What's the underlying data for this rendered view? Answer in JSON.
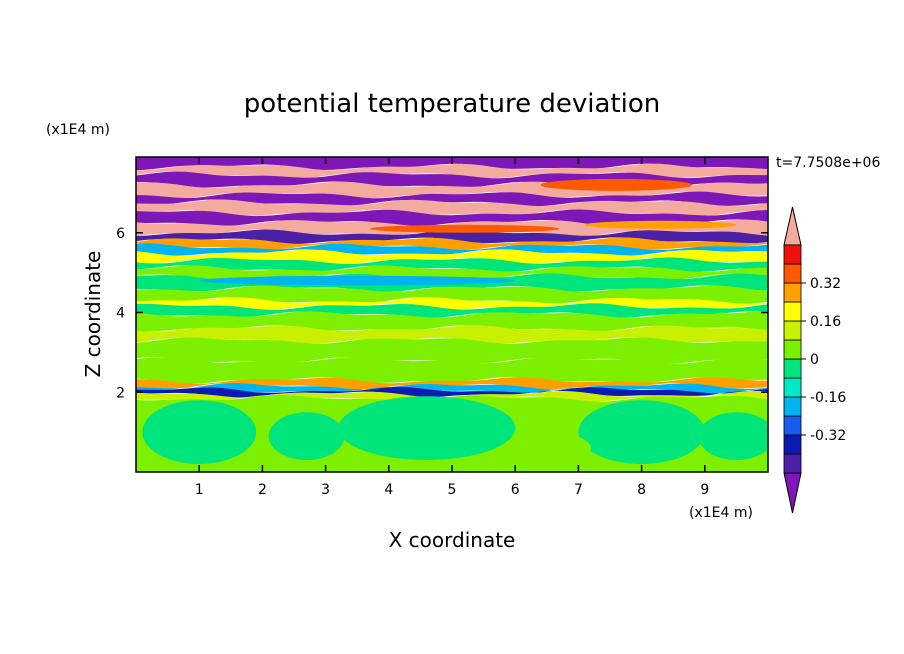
{
  "chart_data": {
    "type": "heatmap",
    "title": "potential temperature deviation",
    "xlabel": "X coordinate",
    "ylabel": "Z coordinate",
    "x_unit": "(x1E4 m)",
    "y_unit": "(x1E4 m)",
    "time_label": "t=7.7508e+06",
    "xlim": [
      0,
      10
    ],
    "ylim": [
      0,
      7.9
    ],
    "x_ticks": [
      "1",
      "2",
      "3",
      "4",
      "5",
      "6",
      "7",
      "8",
      "9"
    ],
    "y_ticks": [
      "2",
      "4",
      "6"
    ],
    "colorbar": {
      "tick_labels": [
        "0.32",
        "0.16",
        "0",
        "-0.16",
        "-0.32"
      ],
      "tick_values": [
        0.32,
        0.16,
        0,
        -0.16,
        -0.32
      ],
      "levels": [
        -0.48,
        -0.4,
        -0.32,
        -0.24,
        -0.16,
        -0.08,
        0,
        0.08,
        0.16,
        0.24,
        0.32,
        0.4,
        0.48
      ],
      "colors": [
        "#7f16b8",
        "#4b1fa6",
        "#0b1ab2",
        "#1a5cf0",
        "#00b4f0",
        "#00e8c8",
        "#00e47c",
        "#7cf000",
        "#c8f000",
        "#ffff00",
        "#ffa000",
        "#ff5a00",
        "#ef1010",
        "#f5aaa0"
      ],
      "extend": "both"
    },
    "bands": [
      {
        "z0": 7.65,
        "z1": 7.9,
        "value": -0.5
      },
      {
        "z0": 7.45,
        "z1": 7.65,
        "value": 0.5
      },
      {
        "z0": 7.2,
        "z1": 7.45,
        "value": -0.5
      },
      {
        "z0": 6.95,
        "z1": 7.2,
        "value": 0.5
      },
      {
        "z0": 6.75,
        "z1": 6.95,
        "value": -0.5
      },
      {
        "z0": 6.5,
        "z1": 6.75,
        "value": 0.5
      },
      {
        "z0": 6.25,
        "z1": 6.5,
        "value": -0.5
      },
      {
        "z0": 6.0,
        "z1": 6.25,
        "value": 0.5
      },
      {
        "z0": 5.8,
        "z1": 6.0,
        "value": -0.45
      },
      {
        "z0": 5.65,
        "z1": 5.8,
        "value": 0.3
      },
      {
        "z0": 5.5,
        "z1": 5.65,
        "value": -0.2
      },
      {
        "z0": 5.3,
        "z1": 5.5,
        "value": 0.2
      },
      {
        "z0": 5.1,
        "z1": 5.3,
        "value": -0.05
      },
      {
        "z0": 4.9,
        "z1": 5.1,
        "value": 0.05
      },
      {
        "z0": 4.6,
        "z1": 4.9,
        "value": -0.05
      },
      {
        "z0": 4.3,
        "z1": 4.6,
        "value": 0.05
      },
      {
        "z0": 4.15,
        "z1": 4.3,
        "value": 0.2
      },
      {
        "z0": 3.95,
        "z1": 4.15,
        "value": -0.05
      },
      {
        "z0": 3.6,
        "z1": 3.95,
        "value": 0.05
      },
      {
        "z0": 3.3,
        "z1": 3.6,
        "value": 0.1
      },
      {
        "z0": 2.8,
        "z1": 3.3,
        "value": 0.05
      },
      {
        "z0": 2.3,
        "z1": 2.8,
        "value": 0.05
      },
      {
        "z0": 2.15,
        "z1": 2.3,
        "value": 0.25
      },
      {
        "z0": 2.05,
        "z1": 2.15,
        "value": -0.2
      },
      {
        "z0": 1.95,
        "z1": 2.05,
        "value": -0.4
      },
      {
        "z0": 1.85,
        "z1": 1.95,
        "value": 0.1
      },
      {
        "z0": 0.0,
        "z1": 1.85,
        "value": 0.05
      }
    ],
    "blobs": [
      {
        "cx": 1.0,
        "cz": 1.0,
        "rx": 0.9,
        "rz": 0.8,
        "value": -0.05
      },
      {
        "cx": 2.7,
        "cz": 0.9,
        "rx": 0.6,
        "rz": 0.6,
        "value": -0.05
      },
      {
        "cx": 4.6,
        "cz": 1.1,
        "rx": 1.4,
        "rz": 0.8,
        "value": -0.05
      },
      {
        "cx": 8.0,
        "cz": 1.0,
        "rx": 1.0,
        "rz": 0.8,
        "value": -0.05
      },
      {
        "cx": 9.5,
        "cz": 0.9,
        "rx": 0.6,
        "rz": 0.6,
        "value": -0.05
      },
      {
        "cx": 6.5,
        "cz": 0.6,
        "rx": 0.7,
        "rz": 0.4,
        "value": 0.05
      },
      {
        "cx": 3.5,
        "cz": 4.8,
        "rx": 2.5,
        "rz": 0.12,
        "value": -0.2
      },
      {
        "cx": 7.6,
        "cz": 7.2,
        "rx": 1.2,
        "rz": 0.15,
        "value": 0.35
      },
      {
        "cx": 5.2,
        "cz": 6.1,
        "rx": 1.5,
        "rz": 0.1,
        "value": 0.35
      },
      {
        "cx": 8.3,
        "cz": 6.2,
        "rx": 1.2,
        "rz": 0.1,
        "value": 0.3
      }
    ]
  }
}
